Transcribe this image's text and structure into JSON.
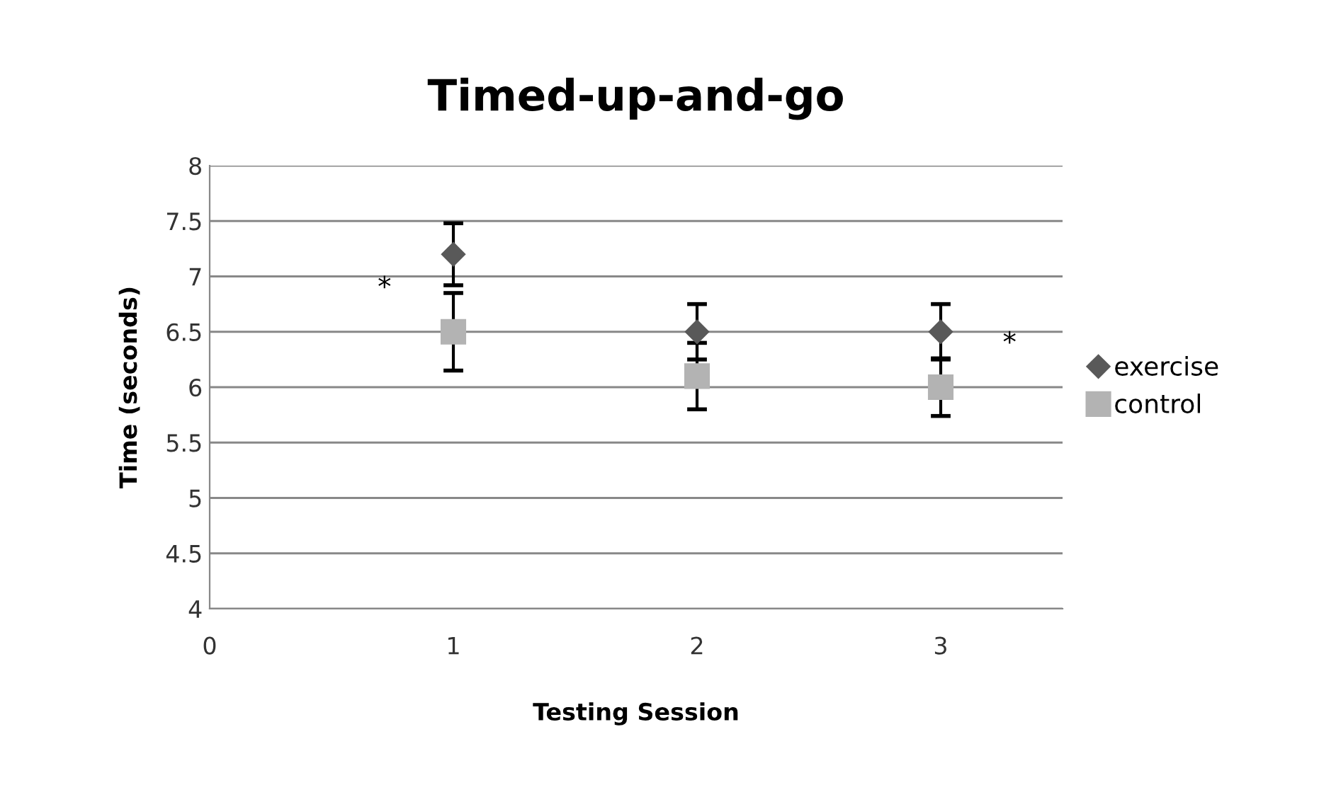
{
  "chart_data": {
    "type": "scatter",
    "title": "Timed-up-and-go",
    "xlabel": "Testing Session",
    "ylabel": "Time (seconds)",
    "xlim": [
      0,
      3.5
    ],
    "xticks": [
      0,
      1,
      2,
      3
    ],
    "ylim": [
      4,
      8
    ],
    "yticks": [
      4,
      4.5,
      5,
      5.5,
      6,
      6.5,
      7,
      7.5,
      8
    ],
    "grid": "y",
    "legend": "right",
    "series": [
      {
        "name": "exercise",
        "color": "#595959",
        "marker": "diamond",
        "x": [
          1,
          2,
          3
        ],
        "values": [
          7.2,
          6.5,
          6.5
        ],
        "errors": [
          0.28,
          0.25,
          0.25
        ]
      },
      {
        "name": "control",
        "color": "#b3b3b3",
        "marker": "square",
        "x": [
          1,
          2,
          3
        ],
        "values": [
          6.5,
          6.1,
          6.0
        ],
        "errors": [
          0.35,
          0.3,
          0.26
        ]
      }
    ],
    "annotations": [
      {
        "text": "*",
        "x": 1,
        "y": 6.5
      },
      {
        "text": "*",
        "x": 3,
        "y": 6.0
      }
    ]
  }
}
